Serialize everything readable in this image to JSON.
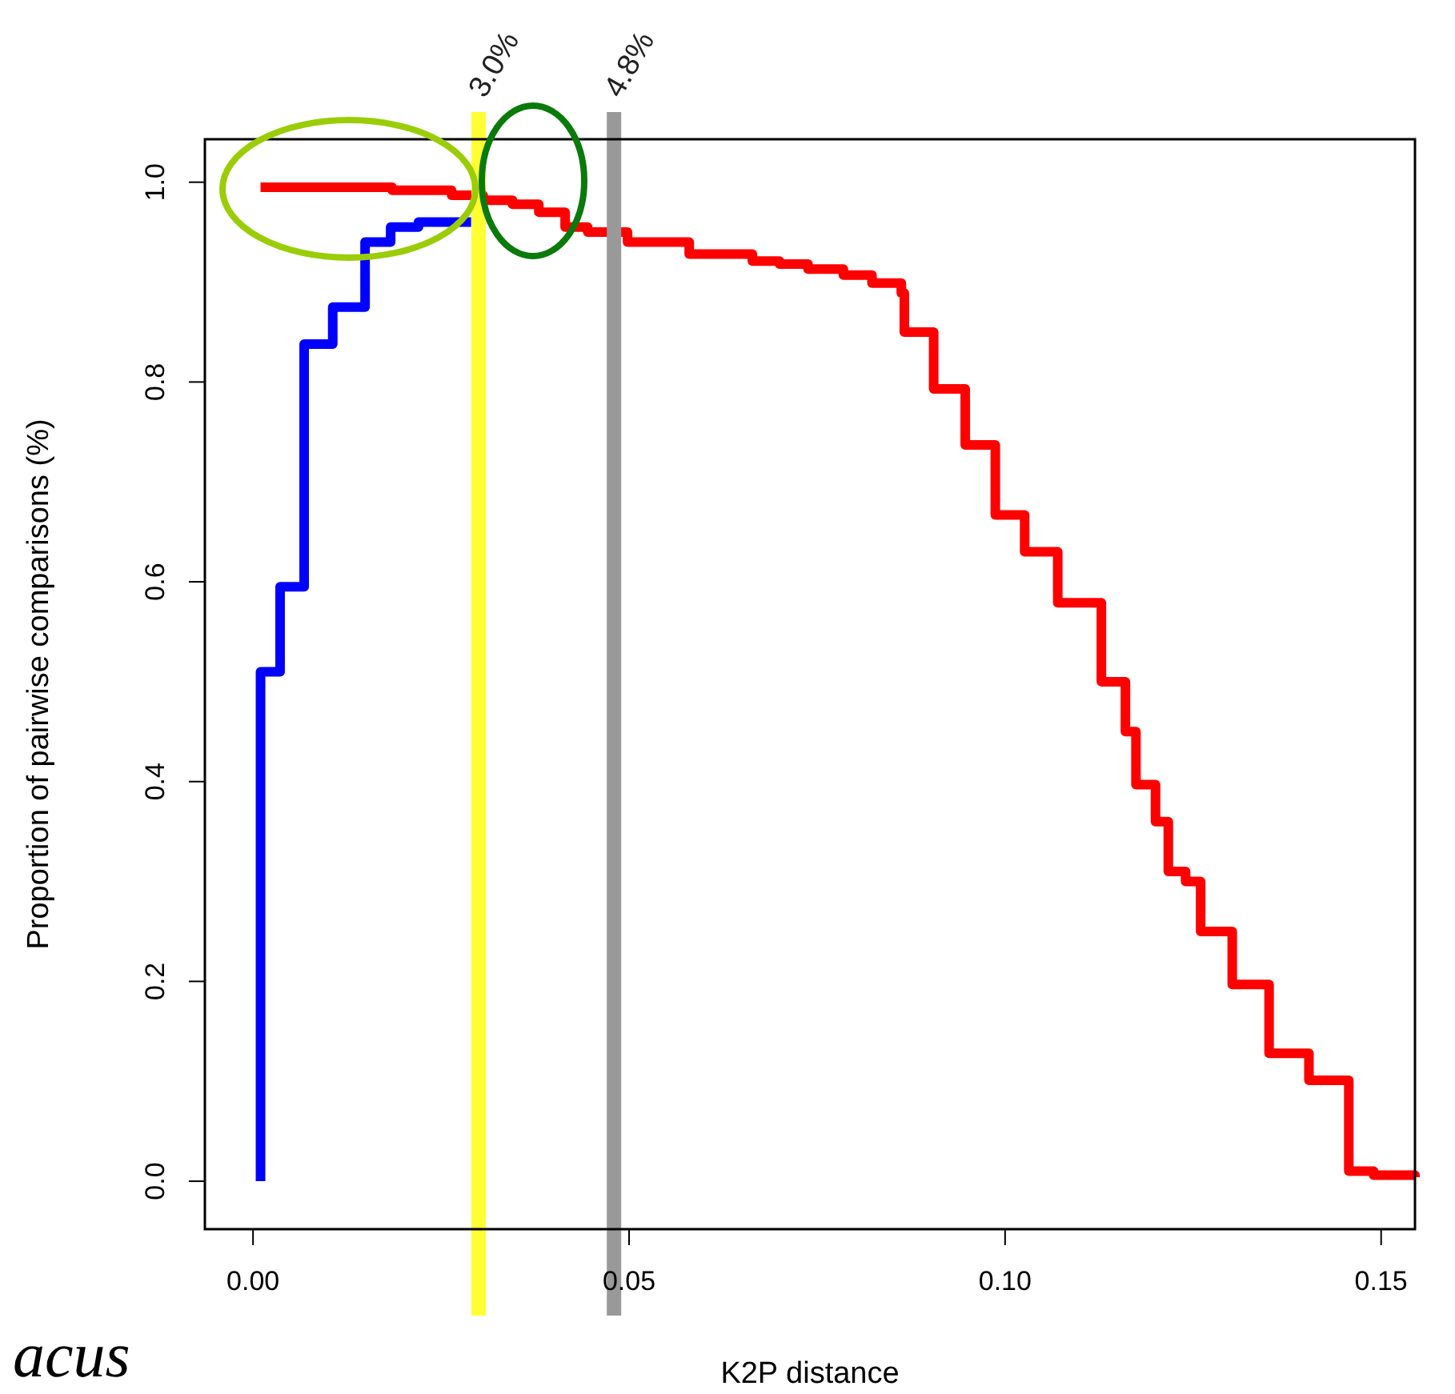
{
  "chart_data": {
    "type": "step",
    "xlabel": "K2P distance",
    "ylabel": "Proportion of pairwise comparisons (%)",
    "xlim": [
      -0.0064,
      0.1545
    ],
    "xticks": [
      {
        "value": 0,
        "label": "0.00"
      },
      {
        "value": 0.05,
        "label": "0.05"
      },
      {
        "value": 0.1,
        "label": "0.10"
      },
      {
        "value": 0.15,
        "label": "0.15"
      }
    ],
    "ylim": [
      -0.048,
      1.043
    ],
    "yticks": [
      {
        "value": 0,
        "label": "0.0"
      },
      {
        "value": 0.2,
        "label": "0.2"
      },
      {
        "value": 0.4,
        "label": "0.4"
      },
      {
        "value": 0.6,
        "label": "0.6"
      },
      {
        "value": 0.8,
        "label": "0.8"
      },
      {
        "value": 1,
        "label": "1.0"
      }
    ],
    "series": [
      {
        "color": "#0000ff",
        "x": [
          0.001,
          0.001,
          0.0036,
          0.0068,
          0.0106,
          0.0149,
          0.0183,
          0.022,
          0.029
        ],
        "values": [
          0,
          0.51,
          0.595,
          0.838,
          0.875,
          0.94,
          0.955,
          0.96,
          0.96
        ]
      },
      {
        "color": "#ff0000",
        "x": [
          0.001,
          0.0185,
          0.0264,
          0.0306,
          0.0345,
          0.038,
          0.0415,
          0.0445,
          0.0498,
          0.058,
          0.0664,
          0.07,
          0.0738,
          0.0785,
          0.0823,
          0.0862,
          0.0866,
          0.0905,
          0.0947,
          0.0987,
          0.1026,
          0.107,
          0.1128,
          0.116,
          0.1174,
          0.12,
          0.1217,
          0.124,
          0.126,
          0.1302,
          0.1351,
          0.1404,
          0.1457,
          0.149,
          0.1545
        ],
        "values": [
          0.995,
          0.992,
          0.987,
          0.982,
          0.978,
          0.97,
          0.955,
          0.95,
          0.94,
          0.928,
          0.921,
          0.918,
          0.913,
          0.907,
          0.899,
          0.889,
          0.85,
          0.793,
          0.737,
          0.667,
          0.63,
          0.579,
          0.5,
          0.45,
          0.397,
          0.36,
          0.31,
          0.3,
          0.25,
          0.197,
          0.128,
          0.101,
          0.01,
          0.006,
          0.004
        ]
      }
    ],
    "ref_lines": [
      {
        "axis": "x",
        "value": 0.03,
        "label": "3.0%",
        "color": "#ffff33"
      },
      {
        "axis": "x",
        "value": 0.048,
        "label": "4.8%",
        "color": "#999999"
      }
    ],
    "annotations": [
      "acus"
    ],
    "grid": false
  }
}
